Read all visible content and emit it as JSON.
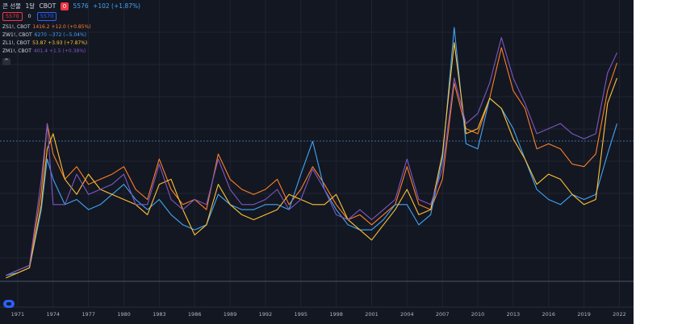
{
  "header": {
    "title": "콘 선물",
    "interval": "1달",
    "exchange": "CBOT",
    "indicator_badge": "0",
    "main_price": "5576",
    "main_change": "+102 (+1.87%)"
  },
  "price_boxes": [
    {
      "label": "5570",
      "color": "#f23645"
    },
    {
      "label": "0",
      "color": "#787b86"
    },
    {
      "label": "5570",
      "color": "#2962ff"
    }
  ],
  "legend": [
    {
      "symbol": "ZS1!, CBOT",
      "value": "1416.2",
      "change": "+12.0 (+0.85%)",
      "color": "#ff7f27"
    },
    {
      "symbol": "ZW1!, CBOT",
      "value": "6270",
      "change": "−372 (−5.04%)",
      "color": "#42a5f5"
    },
    {
      "symbol": "ZL1!, CBOT",
      "value": "53.87",
      "change": "+3.93 (+7.87%)",
      "color": "#ffc233"
    },
    {
      "symbol": "ZM1!, CBOT",
      "value": "401.4",
      "change": "+1.5 (+0.38%)",
      "color": "#7e57c2"
    }
  ],
  "collapse_icon": "chevron-up-icon",
  "logo_icon": "tradingview-logo-icon",
  "chart_data": {
    "type": "line",
    "x_ticks": [
      "1971",
      "1974",
      "1977",
      "1980",
      "1983",
      "1986",
      "1989",
      "1992",
      "1995",
      "1998",
      "2001",
      "2004",
      "2007",
      "2010",
      "2013",
      "2016",
      "2019",
      "2022"
    ],
    "xlim": [
      1969.5,
      2023.2
    ],
    "ylim": [
      0,
      100
    ],
    "grid": true,
    "series": [
      {
        "name": "ZS1!, CBOT",
        "color": "#ff7f27",
        "x": [
          1970,
          1971,
          1972,
          1973,
          1973.5,
          1974,
          1975,
          1976,
          1977,
          1978,
          1979,
          1980,
          1981,
          1982,
          1983,
          1984,
          1985,
          1986,
          1987,
          1988,
          1989,
          1990,
          1991,
          1992,
          1993,
          1994,
          1995,
          1996,
          1997,
          1998,
          1999,
          2000,
          2001,
          2002,
          2003,
          2004,
          2005,
          2006,
          2007,
          2008,
          2009,
          2010,
          2011,
          2012,
          2013,
          2014,
          2015,
          2016,
          2017,
          2018,
          2019,
          2020,
          2021,
          2021.8
        ],
        "y": [
          2,
          4,
          6,
          35,
          62,
          50,
          40,
          45,
          38,
          40,
          42,
          45,
          36,
          32,
          48,
          36,
          30,
          32,
          28,
          50,
          40,
          36,
          34,
          36,
          40,
          30,
          36,
          45,
          38,
          30,
          24,
          26,
          22,
          26,
          30,
          45,
          30,
          28,
          40,
          78,
          60,
          58,
          72,
          92,
          75,
          68,
          52,
          54,
          52,
          46,
          45,
          50,
          75,
          86
        ]
      },
      {
        "name": "ZW1!, CBOT",
        "color": "#42a5f5",
        "x": [
          1970,
          1971,
          1972,
          1973,
          1973.5,
          1974,
          1975,
          1976,
          1977,
          1978,
          1979,
          1980,
          1981,
          1982,
          1983,
          1984,
          1985,
          1986,
          1987,
          1988,
          1989,
          1990,
          1991,
          1992,
          1993,
          1994,
          1995,
          1996,
          1997,
          1998,
          1999,
          2000,
          2001,
          2002,
          2003,
          2004,
          2005,
          2006,
          2007,
          2008,
          2009,
          2010,
          2011,
          2012,
          2013,
          2014,
          2015,
          2016,
          2017,
          2018,
          2019,
          2020,
          2021,
          2021.8
        ],
        "y": [
          2,
          3,
          5,
          28,
          48,
          40,
          30,
          32,
          28,
          30,
          34,
          38,
          32,
          28,
          32,
          26,
          22,
          20,
          22,
          34,
          30,
          28,
          28,
          30,
          30,
          28,
          42,
          55,
          36,
          28,
          22,
          20,
          20,
          24,
          30,
          30,
          22,
          26,
          48,
          100,
          54,
          52,
          72,
          68,
          60,
          48,
          36,
          32,
          30,
          34,
          32,
          34,
          50,
          62
        ]
      },
      {
        "name": "ZL1!, CBOT",
        "color": "#ffc233",
        "x": [
          1970,
          1971,
          1972,
          1973,
          1973.5,
          1974,
          1975,
          1976,
          1977,
          1978,
          1979,
          1980,
          1981,
          1982,
          1983,
          1984,
          1985,
          1986,
          1987,
          1988,
          1989,
          1990,
          1991,
          1992,
          1993,
          1994,
          1995,
          1996,
          1997,
          1998,
          1999,
          2000,
          2001,
          2002,
          2003,
          2004,
          2005,
          2006,
          2007,
          2008,
          2009,
          2010,
          2011,
          2012,
          2013,
          2014,
          2015,
          2016,
          2017,
          2018,
          2019,
          2020,
          2021,
          2021.8
        ],
        "y": [
          1,
          3,
          5,
          30,
          52,
          58,
          40,
          34,
          42,
          36,
          34,
          32,
          30,
          26,
          38,
          40,
          28,
          18,
          22,
          38,
          30,
          26,
          24,
          26,
          28,
          34,
          32,
          30,
          30,
          34,
          24,
          20,
          16,
          22,
          28,
          36,
          26,
          28,
          50,
          94,
          58,
          60,
          72,
          68,
          56,
          48,
          38,
          42,
          40,
          34,
          30,
          32,
          70,
          80
        ]
      },
      {
        "name": "ZM1!, CBOT",
        "color": "#7e57c2",
        "x": [
          1970,
          1971,
          1972,
          1973,
          1973.5,
          1974,
          1975,
          1976,
          1977,
          1978,
          1979,
          1980,
          1981,
          1982,
          1983,
          1984,
          1985,
          1986,
          1987,
          1988,
          1989,
          1990,
          1991,
          1992,
          1993,
          1994,
          1995,
          1996,
          1997,
          1998,
          1999,
          2000,
          2001,
          2002,
          2003,
          2004,
          2005,
          2006,
          2007,
          2008,
          2009,
          2010,
          2011,
          2012,
          2013,
          2014,
          2015,
          2016,
          2017,
          2018,
          2019,
          2020,
          2021,
          2021.8
        ],
        "y": [
          2,
          4,
          6,
          40,
          62,
          30,
          30,
          42,
          34,
          36,
          38,
          42,
          30,
          30,
          46,
          32,
          28,
          32,
          30,
          48,
          36,
          30,
          30,
          32,
          36,
          28,
          32,
          44,
          36,
          26,
          24,
          28,
          24,
          28,
          32,
          48,
          32,
          30,
          44,
          80,
          62,
          66,
          78,
          96,
          80,
          70,
          58,
          60,
          62,
          58,
          56,
          58,
          82,
          90
        ]
      }
    ]
  }
}
